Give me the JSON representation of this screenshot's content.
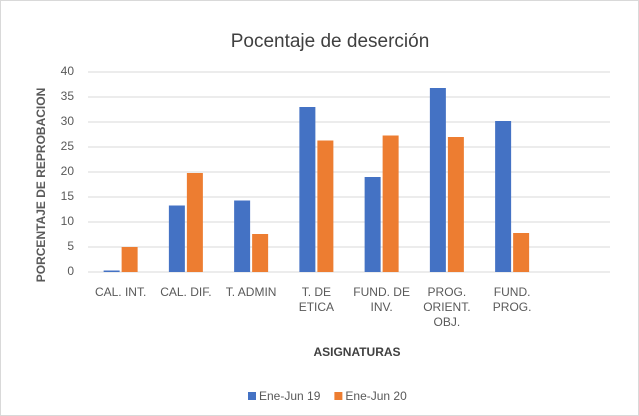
{
  "chart_data": {
    "type": "bar",
    "title": "Pocentaje de deserción",
    "y_label": "PORCENTAJE DE REPROBACION",
    "x_label": "ASIGNATURAS",
    "categories": [
      "CAL. INT.",
      "CAL. DIF.",
      "T. ADMIN",
      "T. DE ETICA",
      "FUND. DE INV.",
      "PROG. ORIENT. OBJ.",
      "FUND. PROG.",
      null
    ],
    "series": [
      {
        "name": "Ene-Jun 19",
        "color": "#4472c4",
        "values": [
          0.3,
          13.3,
          14.3,
          33,
          19,
          36.8,
          30.2,
          null
        ]
      },
      {
        "name": "Ene-Jun 20",
        "color": "#ed7d31",
        "values": [
          5,
          19.8,
          7.6,
          26.3,
          27.3,
          27,
          7.8,
          null
        ]
      }
    ],
    "ylim": [
      0,
      40
    ],
    "yticks": [
      0,
      5,
      10,
      15,
      20,
      25,
      30,
      35,
      40
    ],
    "grid": true,
    "legend": "bottom"
  }
}
